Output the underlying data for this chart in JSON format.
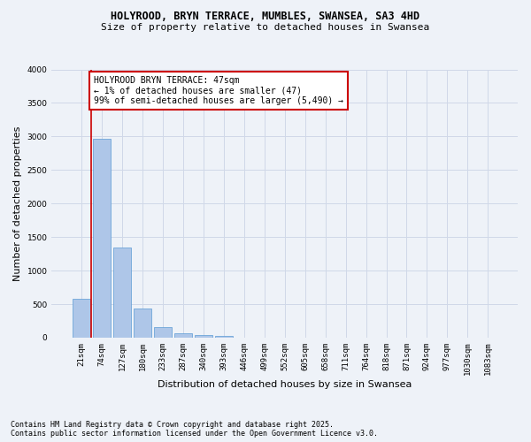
{
  "title_line1": "HOLYROOD, BRYN TERRACE, MUMBLES, SWANSEA, SA3 4HD",
  "title_line2": "Size of property relative to detached houses in Swansea",
  "xlabel": "Distribution of detached houses by size in Swansea",
  "ylabel": "Number of detached properties",
  "categories": [
    "21sqm",
    "74sqm",
    "127sqm",
    "180sqm",
    "233sqm",
    "287sqm",
    "340sqm",
    "393sqm",
    "446sqm",
    "499sqm",
    "552sqm",
    "605sqm",
    "658sqm",
    "711sqm",
    "764sqm",
    "818sqm",
    "871sqm",
    "924sqm",
    "977sqm",
    "1030sqm",
    "1083sqm"
  ],
  "values": [
    580,
    2970,
    1340,
    430,
    155,
    70,
    35,
    25,
    0,
    0,
    0,
    0,
    0,
    0,
    0,
    0,
    0,
    0,
    0,
    0,
    0
  ],
  "bar_color": "#aec6e8",
  "bar_edge_color": "#5b9bd5",
  "annotation_text_line1": "HOLYROOD BRYN TERRACE: 47sqm",
  "annotation_text_line2": "← 1% of detached houses are smaller (47)",
  "annotation_text_line3": "99% of semi-detached houses are larger (5,490) →",
  "annotation_box_color": "#ffffff",
  "annotation_box_edge": "#cc0000",
  "vline_color": "#cc0000",
  "vline_x": 0.48,
  "ylim": [
    0,
    4000
  ],
  "yticks": [
    0,
    500,
    1000,
    1500,
    2000,
    2500,
    3000,
    3500,
    4000
  ],
  "grid_color": "#d0d8e8",
  "bg_color": "#eef2f8",
  "footnote_line1": "Contains HM Land Registry data © Crown copyright and database right 2025.",
  "footnote_line2": "Contains public sector information licensed under the Open Government Licence v3.0.",
  "title_fontsize": 8.5,
  "subtitle_fontsize": 8,
  "axis_label_fontsize": 8,
  "tick_fontsize": 6.5,
  "annotation_fontsize": 7,
  "footnote_fontsize": 6
}
